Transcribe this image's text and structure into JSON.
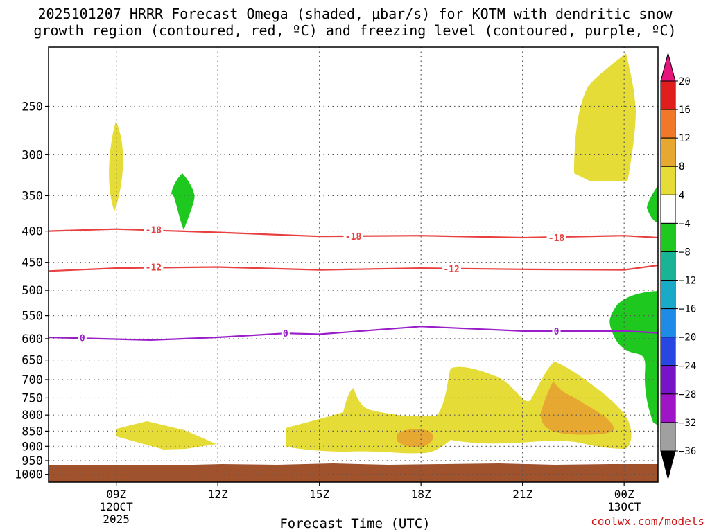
{
  "title": {
    "line1": "2025101207 HRRR Forecast Omega (shaded, μbar/s) for KOTM with dendritic snow",
    "line2": "growth region (contoured, red, ºC) and freezing level (contoured, purple, ºC)"
  },
  "credit": "coolwx.com/models",
  "chart_data": {
    "type": "time-height cross section (filled contours + line contours)",
    "title": "2025101207 HRRR Forecast Omega (shaded, μbar/s) for KOTM with dendritic snow growth region (contoured, red, ºC) and freezing level (contoured, purple, ºC)",
    "xlabel": "Forecast Time (UTC)",
    "ylabel": "",
    "x_range_hours_utc_12oct": [
      7,
      25
    ],
    "y_range_hpa": [
      1030,
      200
    ],
    "y_scale": "log-pressure (inverted)",
    "y_ticks": [
      "250",
      "300",
      "350",
      "400",
      "450",
      "500",
      "550",
      "600",
      "650",
      "700",
      "750",
      "800",
      "850",
      "900",
      "950",
      "1000"
    ],
    "x_ticks": [
      {
        "t": 9,
        "label": "09Z",
        "sub1": "12OCT",
        "sub2": "2025"
      },
      {
        "t": 12,
        "label": "12Z",
        "sub1": "",
        "sub2": ""
      },
      {
        "t": 15,
        "label": "15Z",
        "sub1": "",
        "sub2": ""
      },
      {
        "t": 18,
        "label": "18Z",
        "sub1": "",
        "sub2": ""
      },
      {
        "t": 21,
        "label": "21Z",
        "sub1": "",
        "sub2": ""
      },
      {
        "t": 24,
        "label": "00Z",
        "sub1": "13OCT",
        "sub2": ""
      }
    ],
    "grid": true,
    "ground_color": "#a0522d",
    "ground_top_hpa": 980,
    "colorbar": {
      "labels": [
        "20",
        "16",
        "12",
        "8",
        "4",
        "−4",
        "−8",
        "−12",
        "−16",
        "−20",
        "−24",
        "−28",
        "−32",
        "−36"
      ],
      "colors": [
        "#e01e1e",
        "#f07828",
        "#e6a830",
        "#e6dc37",
        "#ffffff",
        "#1ec81e",
        "#19b496",
        "#19aac8",
        "#1e8ce6",
        "#2846e1",
        "#7814c8",
        "#a014c8",
        "#a0a0a0"
      ],
      "top_arrow_color": "#e6147d",
      "bottom_arrow_color": "#000000"
    },
    "omega_regions": [
      {
        "level": "4 to 8",
        "color": "#e6dc37",
        "approx_times_utc": [
          8.9,
          9.2
        ],
        "approx_hpa": [
          270,
          380
        ]
      },
      {
        "level": "-8 to -4",
        "color": "#1ec81e",
        "approx_times_utc": [
          10.6,
          11.3
        ],
        "approx_hpa": [
          330,
          410
        ]
      },
      {
        "level": "4 to 8",
        "color": "#e6dc37",
        "approx_times_utc": [
          23.4,
          24.3
        ],
        "approx_hpa": [
          205,
          340
        ]
      },
      {
        "level": "-8 to -4",
        "color": "#1ec81e",
        "approx_times_utc": [
          24.6,
          25
        ],
        "approx_hpa": [
          350,
          395
        ]
      },
      {
        "level": "-8 to -4",
        "color": "#1ec81e",
        "approx_times_utc": [
          23.5,
          25
        ],
        "approx_hpa": [
          520,
          820
        ]
      },
      {
        "level": "4 to 8",
        "color": "#e6dc37",
        "approx_times_utc": [
          9,
          12
        ],
        "approx_hpa": [
          840,
          930
        ]
      },
      {
        "level": "4 to 8",
        "color": "#e6dc37",
        "approx_times_utc": [
          14.9,
          24.2
        ],
        "approx_hpa": [
          680,
          950
        ]
      },
      {
        "level": "8 to 12",
        "color": "#e6a830",
        "approx_times_utc": [
          17.3,
          18.4
        ],
        "approx_hpa": [
          875,
          920
        ]
      },
      {
        "level": "8 to 12",
        "color": "#e6a830",
        "approx_times_utc": [
          21.4,
          23.6
        ],
        "approx_hpa": [
          720,
          895
        ]
      }
    ],
    "temperature_contours": [
      {
        "value": -18,
        "color": "#e84040",
        "hpa_by_time": [
          [
            7,
            400
          ],
          [
            9,
            397
          ],
          [
            12,
            402
          ],
          [
            15,
            408
          ],
          [
            18,
            407
          ],
          [
            21,
            410
          ],
          [
            24,
            407
          ],
          [
            25,
            410
          ]
        ]
      },
      {
        "value": -12,
        "color": "#e84040",
        "hpa_by_time": [
          [
            7,
            465
          ],
          [
            9,
            460
          ],
          [
            12,
            458
          ],
          [
            15,
            463
          ],
          [
            18,
            460
          ],
          [
            21,
            462
          ],
          [
            24,
            463
          ],
          [
            25,
            455
          ]
        ]
      },
      {
        "value": 0,
        "color": "#9a1ec8",
        "hpa_by_time": [
          [
            7,
            597
          ],
          [
            10,
            603
          ],
          [
            12,
            597
          ],
          [
            14,
            588
          ],
          [
            15,
            590
          ],
          [
            18,
            573
          ],
          [
            21,
            583
          ],
          [
            24,
            583
          ],
          [
            25,
            587
          ]
        ]
      }
    ],
    "contour_labels": [
      {
        "text": "-18",
        "t": 10.1,
        "hpa": 398
      },
      {
        "text": "-18",
        "t": 16.0,
        "hpa": 408
      },
      {
        "text": "-18",
        "t": 22.0,
        "hpa": 410
      },
      {
        "text": "-12",
        "t": 10.1,
        "hpa": 458
      },
      {
        "text": "-12",
        "t": 18.9,
        "hpa": 461
      },
      {
        "text": "0",
        "t": 8.0,
        "hpa": 598
      },
      {
        "text": "0",
        "t": 14.0,
        "hpa": 588
      },
      {
        "text": "0",
        "t": 22.0,
        "hpa": 583
      }
    ]
  }
}
